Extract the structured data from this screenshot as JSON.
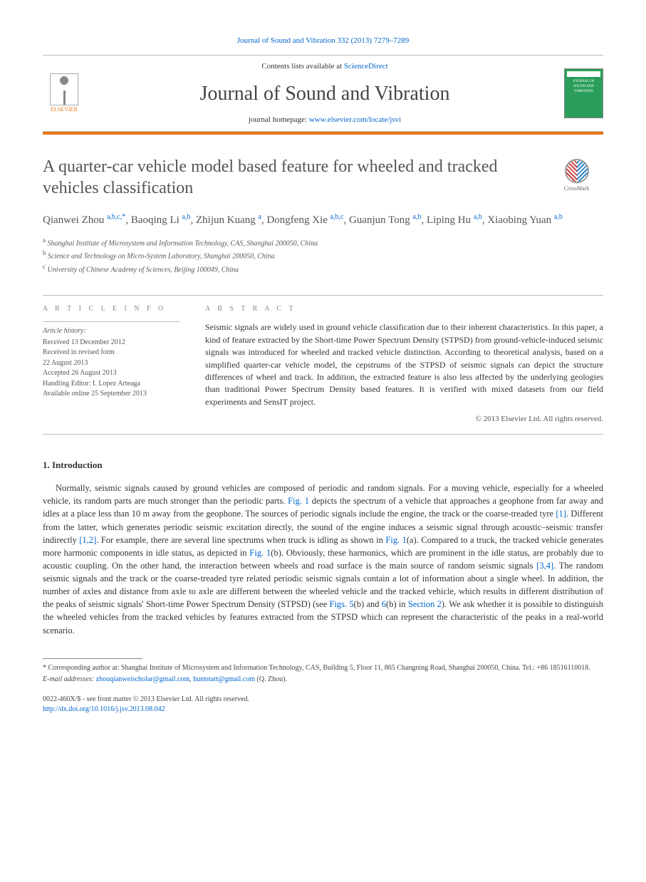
{
  "top_link": "Journal of Sound and Vibration 332 (2013) 7279–7289",
  "header": {
    "elsevier_label": "ELSEVIER",
    "contents_prefix": "Contents lists available at ",
    "contents_link": "ScienceDirect",
    "journal_title": "Journal of Sound and Vibration",
    "homepage_prefix": "journal homepage: ",
    "homepage_link": "www.elsevier.com/locate/jsvi",
    "cover_top": "—",
    "cover_text": "JOURNAL OF SOUND AND VIBRATION"
  },
  "crossmark_label": "CrossMark",
  "title": "A quarter-car vehicle model based feature for wheeled and tracked vehicles classification",
  "authors": [
    {
      "name": "Qianwei Zhou",
      "affs": "a,b,c,",
      "corr": "*"
    },
    {
      "name": "Baoqing Li",
      "affs": "a,b"
    },
    {
      "name": "Zhijun Kuang",
      "affs": "a"
    },
    {
      "name": "Dongfeng Xie",
      "affs": "a,b,c"
    },
    {
      "name": "Guanjun Tong",
      "affs": "a,b"
    },
    {
      "name": "Liping Hu",
      "affs": "a,b"
    },
    {
      "name": "Xiaobing Yuan",
      "affs": "a,b"
    }
  ],
  "affiliations": [
    {
      "key": "a",
      "text": "Shanghai Institute of Microsystem and Information Technology, CAS, Shanghai 200050, China"
    },
    {
      "key": "b",
      "text": "Science and Technology on Micro-System Laboratory, Shanghai 200050, China"
    },
    {
      "key": "c",
      "text": "University of Chinese Academy of Sciences, Beijing 100049, China"
    }
  ],
  "info": {
    "heading": "A R T I C L E   I N F O",
    "history_label": "Article history:",
    "lines": [
      "Received 13 December 2012",
      "Received in revised form",
      "22 August 2013",
      "Accepted 26 August 2013",
      "Handling Editor: I. Lopez Arteaga",
      "Available online 25 September 2013"
    ]
  },
  "abstract": {
    "heading": "A B S T R A C T",
    "text": "Seismic signals are widely used in ground vehicle classification due to their inherent characteristics. In this paper, a kind of feature extracted by the Short-time Power Spectrum Density (STPSD) from ground-vehicle-induced seismic signals was introduced for wheeled and tracked vehicle distinction. According to theoretical analysis, based on a simplified quarter-car vehicle model, the cepstrums of the STPSD of seismic signals can depict the structure differences of wheel and track. In addition, the extracted feature is also less affected by the underlying geologies than traditional Power Spectrum Density based features. It is verified with mixed datasets from our field experiments and SensIT project.",
    "copyright": "© 2013 Elsevier Ltd. All rights reserved."
  },
  "section1": {
    "heading": "1.  Introduction",
    "para": "Normally, seismic signals caused by ground vehicles are composed of periodic and random signals. For a moving vehicle, especially for a wheeled vehicle, its random parts are much stronger than the periodic parts. {FIG1} depicts the spectrum of a vehicle that approaches a geophone from far away and idles at a place less than 10 m away from the geophone. The sources of periodic signals include the engine, the track or the coarse-treaded tyre {REF1}. Different from the latter, which generates periodic seismic excitation directly, the sound of the engine induces a seismic signal through acoustic–seismic transfer indirectly {REF12}. For example, there are several line spectrums when truck is idling as shown in {FIG1A}(a). Compared to a truck, the tracked vehicle generates more harmonic components in idle status, as depicted in {FIG1B}(b). Obviously, these harmonics, which are prominent in the idle status, are probably due to acoustic coupling. On the other hand, the interaction between wheels and road surface is the main source of random seismic signals {REF34}. The random seismic signals and the track or the coarse-treaded tyre related periodic seismic signals contain a lot of information about a single wheel. In addition, the number of axles and distance from axle to axle are different between the wheeled vehicle and the tracked vehicle, which results in different distribution of the peaks of seismic signals' Short-time Power Spectrum Density (STPSD) (see {FIG5}(b) and {FIG6}(b) in {SEC2}). We ask whether it is possible to distinguish the wheeled vehicles from the tracked vehicles by features extracted from the STPSD which can represent the characteristic of the peaks in a real-world scenario.",
    "fig1": "Fig. 1",
    "ref1": "[1]",
    "ref12": "[1,2]",
    "ref34": "[3,4]",
    "fig5": "Figs. 5",
    "fig6": "6",
    "sec2": "Section 2"
  },
  "footnotes": {
    "corr_prefix": "* Corresponding author at: Shanghai Institute of Microsystem and Information Technology, CAS, Building 5, Floor 11, 865 Changning Road, Shanghai 200050, China. Tel.: +86 18516110018.",
    "email_label": "E-mail addresses: ",
    "email1": "zhouqianweischolar@gmail.com",
    "email_sep": ", ",
    "email2": "huntstart@gmail.com",
    "email_who": " (Q. Zhou)."
  },
  "footer": {
    "line1": "0022-460X/$ - see front matter © 2013 Elsevier Ltd. All rights reserved.",
    "doi": "http://dx.doi.org/10.1016/j.jsv.2013.08.042"
  },
  "colors": {
    "link": "#0066cc",
    "orange": "#e67817",
    "cover_green": "#2a9d5a"
  }
}
